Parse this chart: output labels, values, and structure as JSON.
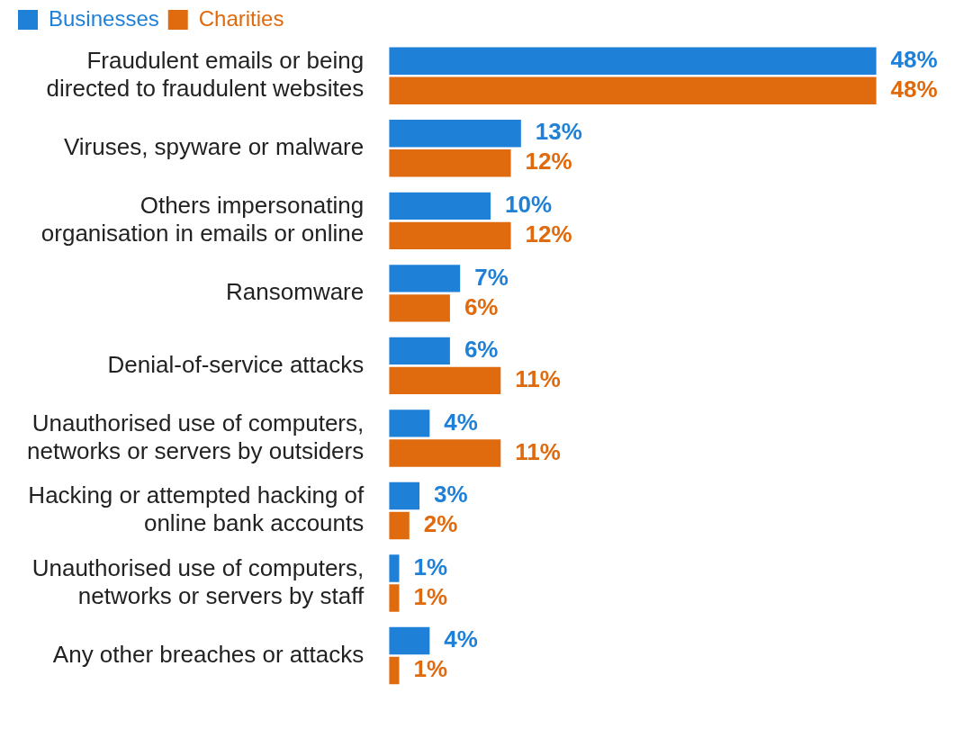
{
  "chart_data": {
    "type": "bar",
    "orientation": "horizontal",
    "legend": "top left",
    "categories": [
      "Fraudulent emails or being directed to fraudulent websites",
      "Viruses, spyware or malware",
      "Others impersonating organisation in emails or online",
      "Ransomware",
      "Denial-of-service attacks",
      "Unauthorised use of computers, networks or servers by outsiders",
      "Hacking or attempted hacking of online bank accounts",
      "Unauthorised use of computers, networks or servers by staff",
      "Any other breaches or attacks"
    ],
    "series": [
      {
        "name": "Businesses",
        "color": "#1f80d8",
        "values": [
          48,
          13,
          10,
          7,
          6,
          4,
          3,
          1,
          4
        ],
        "value_labels": [
          "48%",
          "13%",
          "10%",
          "7%",
          "6%",
          "4%",
          "3%",
          "1%",
          "4%"
        ]
      },
      {
        "name": "Charities",
        "color": "#e06a0e",
        "values": [
          48,
          12,
          12,
          6,
          11,
          11,
          2,
          1,
          1
        ],
        "value_labels": [
          "48%",
          "12%",
          "12%",
          "6%",
          "11%",
          "11%",
          "2%",
          "1%",
          "1%"
        ]
      }
    ]
  }
}
